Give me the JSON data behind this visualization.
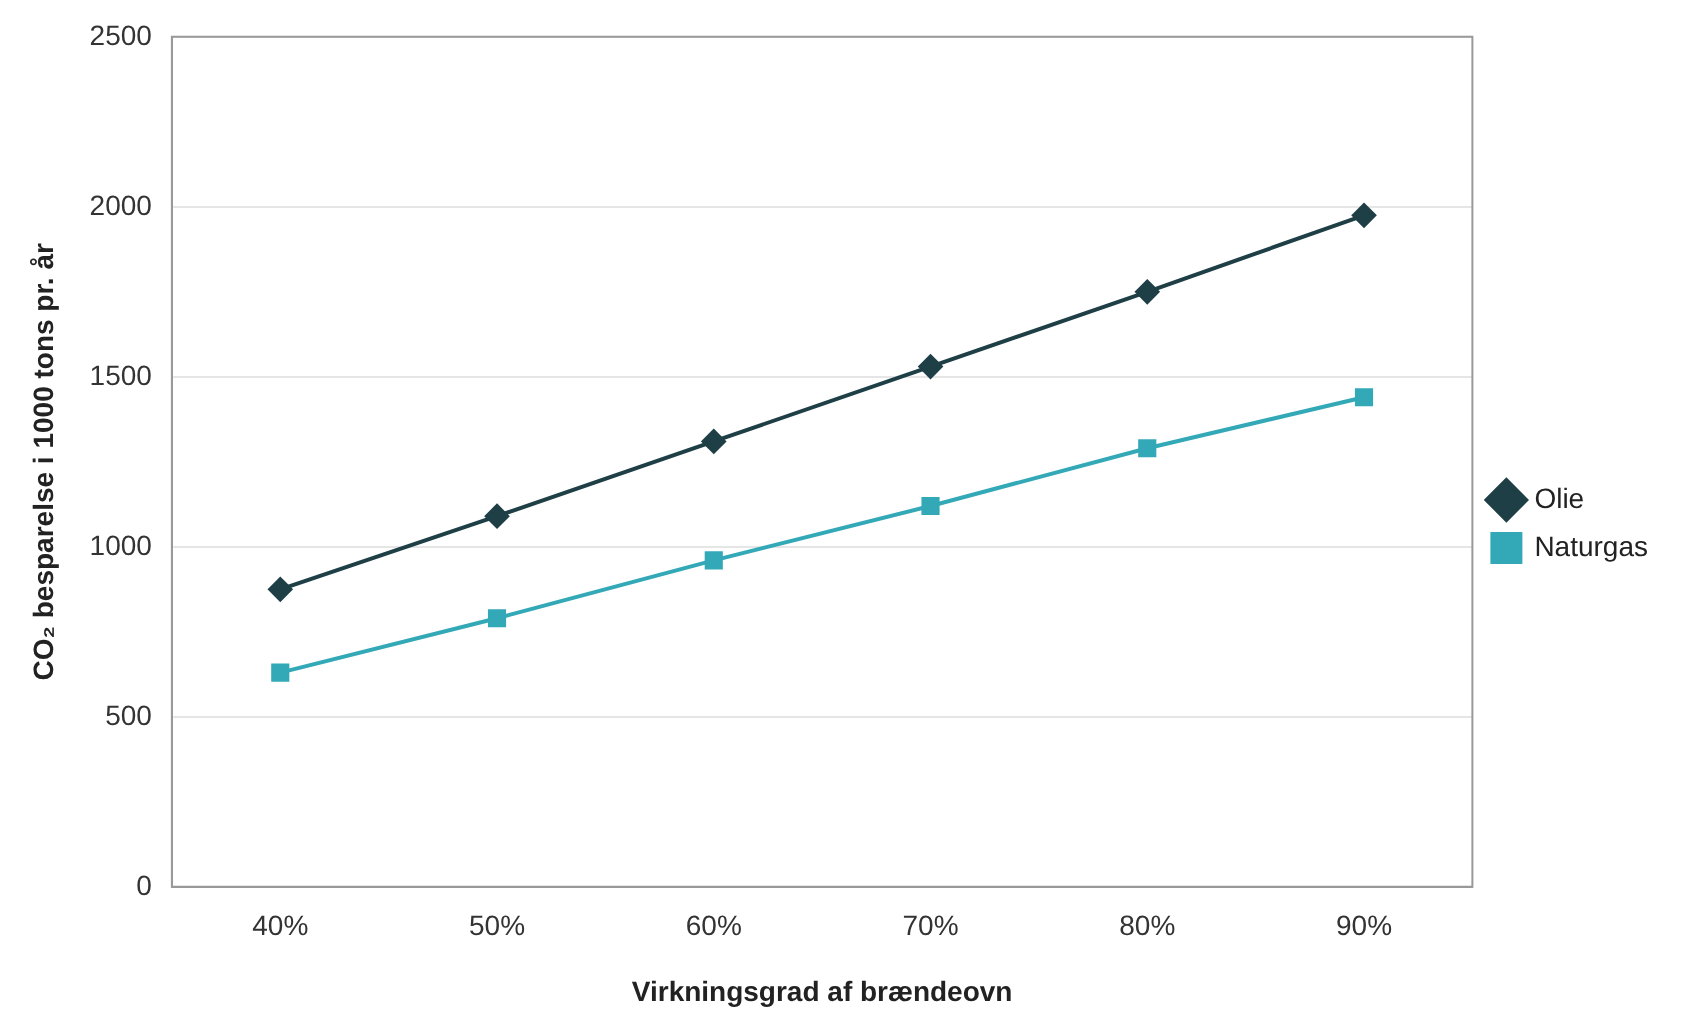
{
  "chart_data": {
    "type": "line",
    "xlabel": "Virkningsgrad af brændeovn",
    "ylabel": "CO₂ besparelse i 1000 tons pr. år",
    "categories": [
      "40%",
      "50%",
      "60%",
      "70%",
      "80%",
      "90%"
    ],
    "series": [
      {
        "name": "Olie",
        "color": "#1f3f46",
        "marker": "diamond",
        "values": [
          875,
          1090,
          1310,
          1530,
          1750,
          1975
        ]
      },
      {
        "name": "Naturgas",
        "color": "#33a9b8",
        "marker": "square",
        "values": [
          630,
          790,
          960,
          1120,
          1290,
          1440
        ]
      }
    ],
    "ylim": [
      0,
      2500
    ],
    "yticks": [
      0,
      500,
      1000,
      1500,
      2000,
      2500
    ],
    "grid": "y",
    "legend": "right"
  }
}
